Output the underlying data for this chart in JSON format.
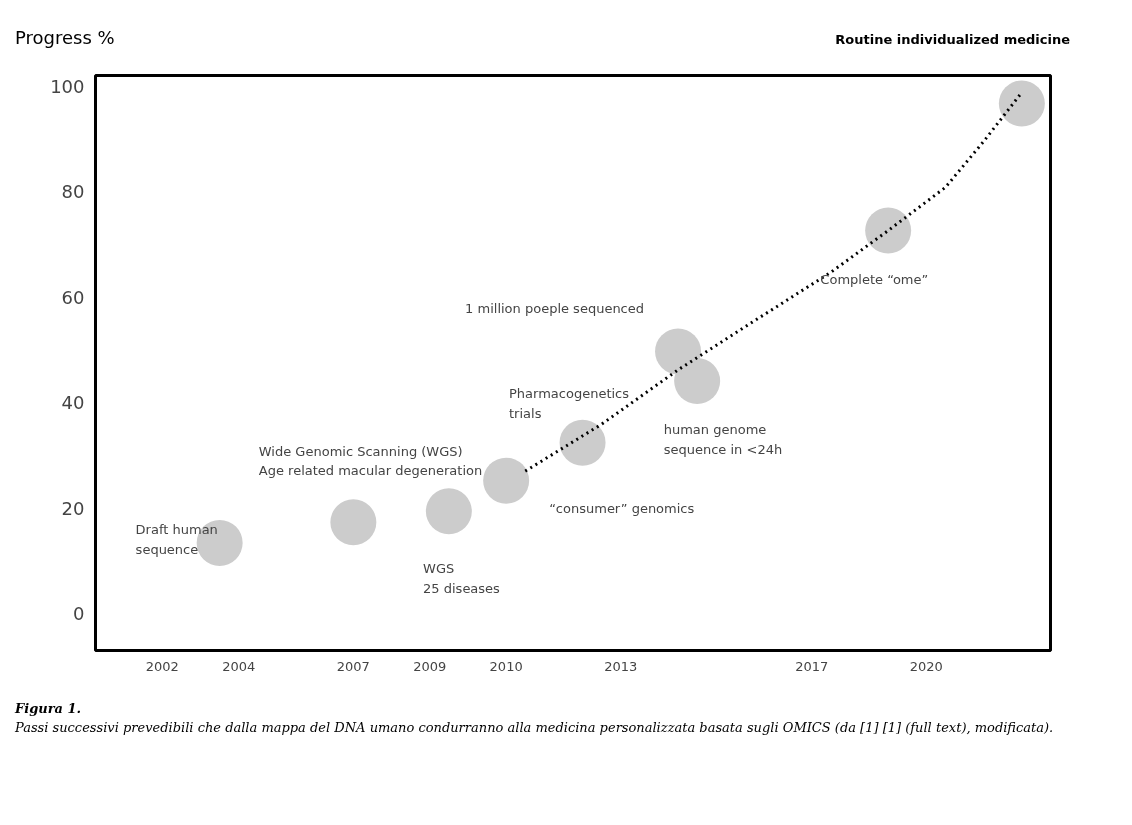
{
  "chart_data": {
    "type": "scatter",
    "title": "Figura 1.",
    "ylabel": "Progress %",
    "categories": [
      null,
      null,
      null,
      "2002",
      null,
      null,
      null,
      "2004",
      null,
      null,
      null,
      null,
      null,
      "2007",
      null,
      null,
      null,
      "2009",
      null,
      null,
      null,
      "2010",
      null,
      null,
      null,
      null,
      null,
      "2013",
      null,
      null,
      null,
      null,
      null,
      null,
      null,
      null,
      null,
      "2017",
      null,
      null,
      null,
      null,
      null,
      "2020",
      null,
      null,
      null,
      null,
      null,
      null
    ],
    "ylim": [
      -7,
      102
    ],
    "yticks": [
      0,
      20,
      40,
      60,
      80,
      100
    ],
    "grid": false,
    "series": [
      {
        "color": "#cccccc",
        "marker": "circle",
        "values": [
          null,
          null,
          null,
          null,
          null,
          null,
          13.4,
          null,
          null,
          null,
          null,
          null,
          null,
          17.3,
          null,
          null,
          null,
          null,
          19.4,
          null,
          null,
          25.2,
          null,
          null,
          null,
          32.4,
          null,
          null,
          null,
          null,
          49.7,
          44.1,
          null,
          null,
          null,
          null,
          null,
          null,
          null,
          null,
          null,
          72.6,
          null,
          null,
          null,
          null,
          null,
          null,
          96.7,
          null
        ]
      },
      {
        "type": "line",
        "color": "#000000",
        "line_style": "dotted",
        "values": [
          null,
          null,
          null,
          null,
          null,
          null,
          null,
          null,
          null,
          null,
          null,
          null,
          null,
          null,
          null,
          null,
          null,
          null,
          null,
          null,
          null,
          null,
          27.0,
          null,
          null,
          null,
          35.9,
          null,
          null,
          null,
          46.2,
          null,
          null,
          null,
          55.5,
          null,
          null,
          null,
          64.7,
          null,
          null,
          72.6,
          null,
          null,
          80.8,
          null,
          89.5,
          null,
          98.8,
          null
        ]
      }
    ],
    "annotations": [
      "Routine individualized medicine",
      "Passi successivi prevedibili che dalla mappa del DNA umano condurranno alla medicina personalizzata basata sugli OMICS (da [1] [1] (full text), modificata).",
      "Draft human\nsequence",
      "Wide Genomic Scanning (WGS)\nAge related macular degeneration",
      "WGS\n25 diseases",
      "Pharmacogenetics\ntrials",
      "“consumer” genomics",
      "1 million poeple sequenced",
      "human genome\nsequence in <24h",
      "Complete “ome”"
    ]
  }
}
